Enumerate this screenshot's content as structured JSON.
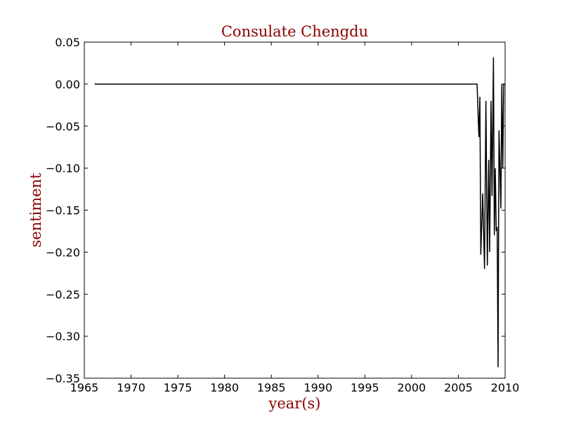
{
  "chart_data": {
    "type": "line",
    "title": "Consulate Chengdu",
    "xlabel": "year(s)",
    "ylabel": "sentiment",
    "xlim": [
      1965,
      2010
    ],
    "ylim": [
      -0.35,
      0.05
    ],
    "xticks": [
      1965,
      1970,
      1975,
      1980,
      1985,
      1990,
      1995,
      2000,
      2005,
      2010
    ],
    "yticks": [
      0.05,
      0.0,
      -0.05,
      -0.1,
      -0.15,
      -0.2,
      -0.25,
      -0.3,
      -0.35
    ],
    "grid": false,
    "legend": "none",
    "colors": {
      "line": "#000000",
      "title": "#8b0000",
      "axis_label": "#8b0000",
      "axes": "#000000"
    },
    "series": [
      {
        "x": [
          1966.1,
          2007.0,
          2007.2,
          2007.3,
          2007.4,
          2007.6,
          2007.8,
          2007.95,
          2008.1,
          2008.25,
          2008.35,
          2008.5,
          2008.6,
          2008.75,
          2008.85,
          2008.95,
          2009.05,
          2009.15,
          2009.25,
          2009.35,
          2009.45,
          2009.55,
          2009.65,
          2009.75,
          2009.85,
          2009.95
        ],
        "y": [
          0.0,
          0.0,
          -0.063,
          -0.015,
          -0.203,
          -0.13,
          -0.22,
          -0.02,
          -0.216,
          -0.09,
          -0.2,
          -0.02,
          -0.133,
          0.032,
          -0.18,
          -0.1,
          -0.175,
          -0.17,
          -0.337,
          -0.055,
          -0.1,
          -0.148,
          0.0,
          -0.1,
          0.0,
          0.0
        ]
      }
    ]
  }
}
